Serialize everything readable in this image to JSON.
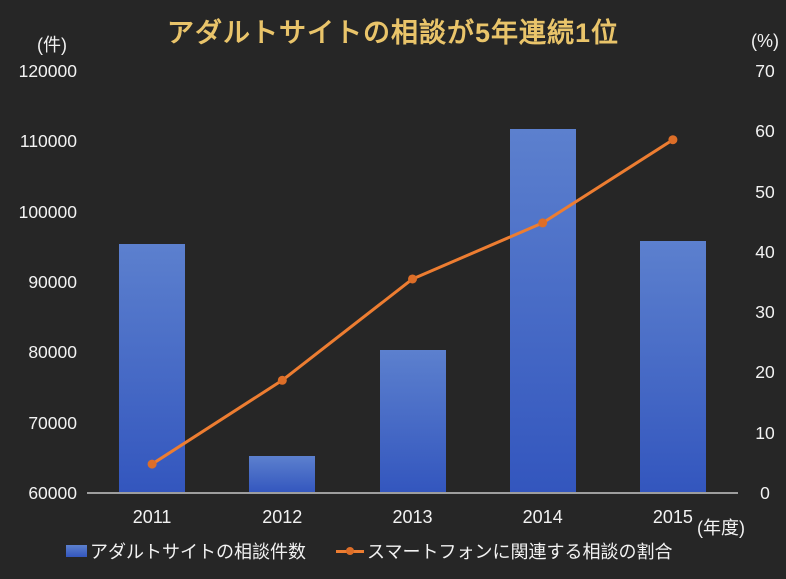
{
  "title": "アダルトサイトの相談が5年連続1位",
  "left_axis": {
    "unit_label": "(件)",
    "ticks": [
      "120000",
      "110000",
      "100000",
      "90000",
      "80000",
      "70000",
      "60000"
    ]
  },
  "right_axis": {
    "unit_label": "(%)",
    "ticks": [
      "70",
      "60",
      "50",
      "40",
      "30",
      "20",
      "10",
      "0"
    ]
  },
  "x_axis": {
    "unit_label": "(年度)",
    "categories": [
      "2011",
      "2012",
      "2013",
      "2014",
      "2015"
    ]
  },
  "legend": {
    "bar_label": "アダルトサイトの相談件数",
    "line_label": "スマートフォンに関連する相談の割合"
  },
  "colors": {
    "background": "#262626",
    "title": "#E9C46A",
    "text": "#F2F2F2",
    "bar_top": "#5C80CE",
    "bar_bottom": "#3356BE",
    "line": "#ED7D31",
    "marker": "#DD6E28",
    "axis_line": "#9E9E9E"
  },
  "chart_data": {
    "type": "combo",
    "title": "アダルトサイトの相談が5年連続1位",
    "categories": [
      "2011",
      "2012",
      "2013",
      "2014",
      "2015"
    ],
    "series": [
      {
        "name": "アダルトサイトの相談件数",
        "type": "bar",
        "axis": "left",
        "values": [
          95400,
          65300,
          80300,
          111700,
          95800
        ]
      },
      {
        "name": "スマートフォンに関連する相談の割合",
        "type": "line",
        "axis": "right",
        "values": [
          4.8,
          18.7,
          35.5,
          44.8,
          58.6
        ]
      }
    ],
    "ylim_left": [
      60000,
      120000
    ],
    "ylim_right": [
      0,
      70
    ],
    "ylabel_left": "(件)",
    "ylabel_right": "(%)",
    "xlabel": "(年度)",
    "grid": false,
    "legend_position": "bottom"
  }
}
